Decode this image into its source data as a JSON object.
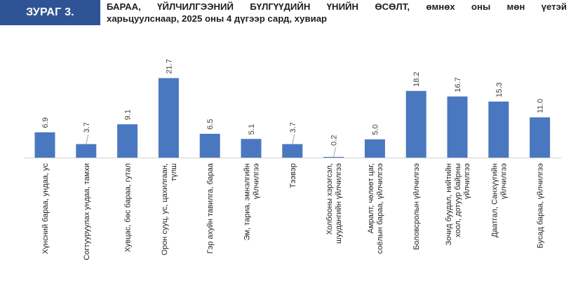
{
  "figure": {
    "label": "ЗУРАГ 3.",
    "title_line1": "БАРАА, ҮЙЛЧИЛГЭЭНИЙ БҮЛГҮҮДИЙН ҮНИЙН ӨСӨЛТ, өмнөх оны мөн үетэй",
    "title_line2": "харьцуулснаар, 2025 оны 4 дүгээр сард, хувиар"
  },
  "colors": {
    "bar": "#4a78c0",
    "badge": "#2f5496"
  },
  "chart_data": {
    "type": "bar",
    "title": "БАРАА, ҮЙЛЧИЛГЭЭНИЙ БҮЛГҮҮДИЙН ҮНИЙН ӨСӨЛТ, өмнөх оны мөн үетэй харьцуулснаар, 2025 оны 4 дүгээр сард, хувиар",
    "xlabel": "",
    "ylabel": "",
    "grid": false,
    "legend": "none",
    "ylim": [
      0,
      23
    ],
    "categories": [
      [
        "Хүнсний бараа, ундаа, ус"
      ],
      [
        "Согтууруулах ундаа, тамхи"
      ],
      [
        "Хувцас, бөс бараа, гутал"
      ],
      [
        "Орон сууц, ус, цахилгаан,",
        "түлш"
      ],
      [
        "Гэр ахуйн тавилга, бараа"
      ],
      [
        "Эм, тариа, эмнэлгийн",
        "үйлчилгээ"
      ],
      [
        "Тээвэр"
      ],
      [
        "Холбооны хэрэгсэл,",
        "шуудангийн үйлчилгээ"
      ],
      [
        "Амралт, чөлөөт цаг,",
        "соёлын бараа, үйлчилгээ"
      ],
      [
        "Боловсролын үйлчилгээ"
      ],
      [
        "Зочид буудал, нийтийн",
        "хоол, дотуур байрны",
        "үйлчилгээ"
      ],
      [
        "Даатгал, Санхүүгийн",
        "үйлчилгээ"
      ],
      [
        "Бусад бараа, үйлчилгээ"
      ]
    ],
    "values": [
      6.9,
      3.7,
      9.1,
      21.7,
      6.5,
      5.1,
      3.7,
      0.2,
      5.0,
      18.2,
      16.7,
      15.3,
      11.0
    ],
    "value_labels": [
      "6.9",
      "3.7",
      "9.1",
      "21.7",
      "6.5",
      "5.1",
      "3.7",
      "0.2",
      "5.0",
      "18.2",
      "16.7",
      "15.3",
      "11.0"
    ]
  }
}
